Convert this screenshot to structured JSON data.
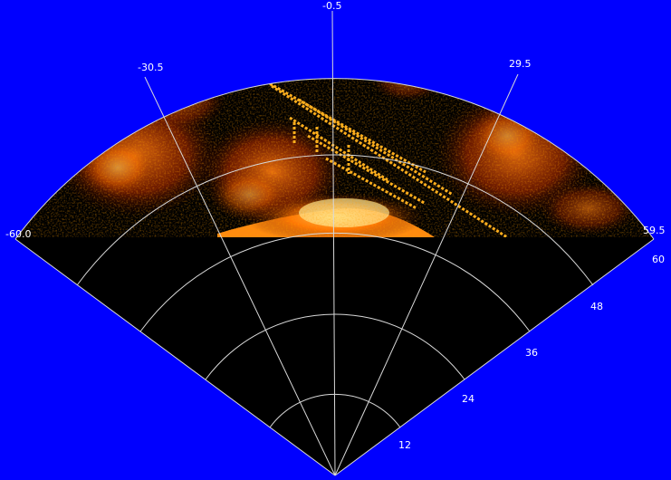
{
  "sonar": {
    "angle_labels": [
      "-60.0",
      "-30.5",
      "-0.5",
      "29.5",
      "59.5"
    ],
    "range_labels": [
      "12",
      "24",
      "36",
      "48",
      "60"
    ],
    "colors": {
      "background": "#0000ff",
      "fan_fill": "#000000",
      "grid": "#d8d8d8",
      "label": "#ffffff",
      "echo_palette": [
        "#5a0c00",
        "#a82200",
        "#e85a00",
        "#ffb400",
        "#fff0a0"
      ]
    }
  }
}
